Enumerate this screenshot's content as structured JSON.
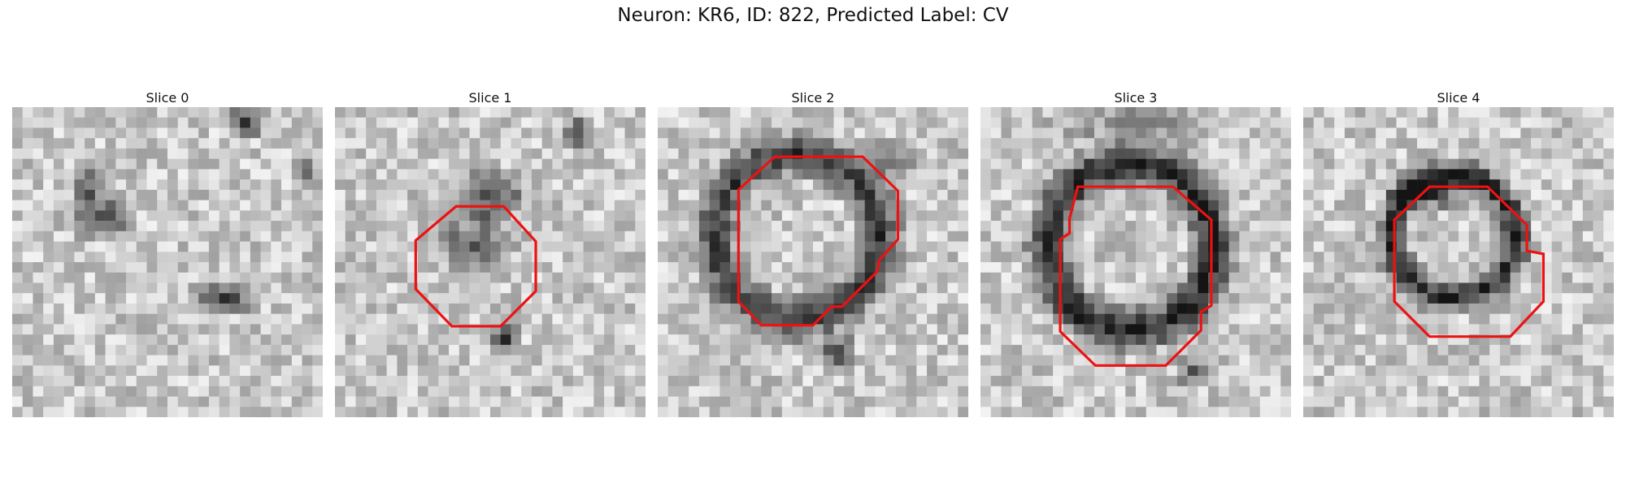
{
  "figure": {
    "title": "Neuron: KR6, ID: 822, Predicted Label: CV"
  },
  "panels": [
    {
      "title": "Slice 0",
      "has_contour": false
    },
    {
      "title": "Slice 1",
      "has_contour": true
    },
    {
      "title": "Slice 2",
      "has_contour": true
    },
    {
      "title": "Slice 3",
      "has_contour": true
    },
    {
      "title": "Slice 4",
      "has_contour": true
    }
  ],
  "colors": {
    "contour": "#ee1111",
    "background": "#ffffff"
  }
}
